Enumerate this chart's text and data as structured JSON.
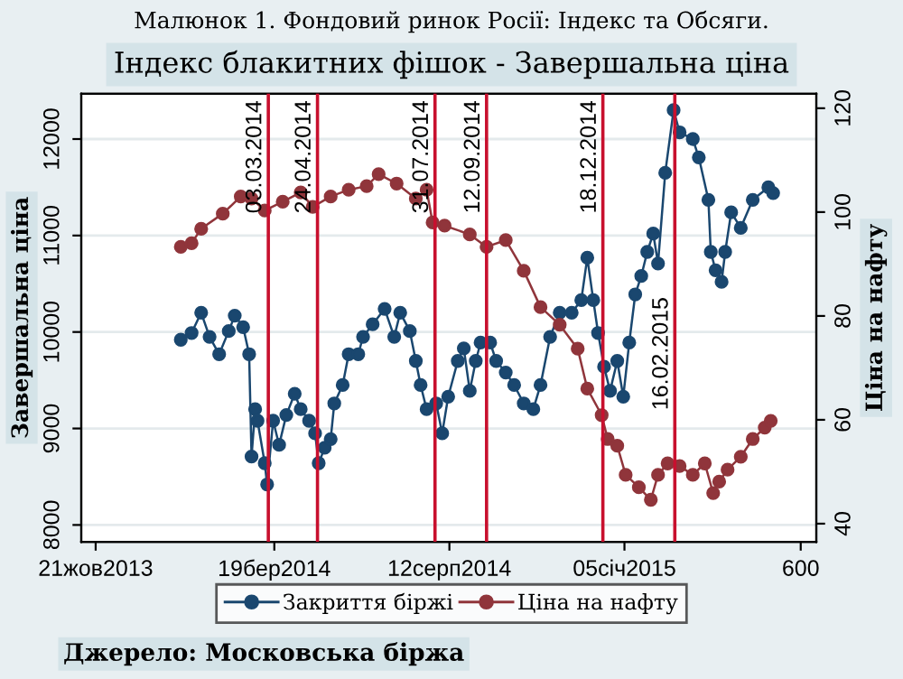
{
  "chart_data": {
    "type": "line",
    "title": "Малюнок 1. Фондовий ринок Росії: Індекс та Обсяги.",
    "subtitle": "Індекс блакитних фішок - Завершальна ціна",
    "ylabel": "Завершальна ціна",
    "y2label": "Ціна на нафту",
    "annotations": [
      "Джерело: Московська біржа"
    ],
    "series": [
      {
        "name": "Закриття біржі",
        "color": "#1a476f",
        "x": [
          "2013-12-31",
          "2014-01-09",
          "2014-01-17",
          "2014-01-24",
          "2014-02-01",
          "2014-02-09",
          "2014-02-14",
          "2014-02-21",
          "2014-02-26",
          "2014-02-28",
          "2014-03-03",
          "2014-03-05",
          "2014-03-11",
          "2014-03-13",
          "2014-03-18",
          "2014-03-23",
          "2014-03-29",
          "2014-04-05",
          "2014-04-10",
          "2014-04-17",
          "2014-04-22",
          "2014-04-25",
          "2014-04-30",
          "2014-05-05",
          "2014-05-08",
          "2014-05-15",
          "2014-05-20",
          "2014-05-28",
          "2014-06-01",
          "2014-06-09",
          "2014-06-19",
          "2014-06-27",
          "2014-07-02",
          "2014-07-10",
          "2014-07-15",
          "2014-07-19",
          "2014-07-24",
          "2014-08-01",
          "2014-08-06",
          "2014-08-11",
          "2014-08-19",
          "2014-08-24",
          "2014-08-29",
          "2014-09-03",
          "2014-09-07",
          "2014-09-15",
          "2014-09-20",
          "2014-09-28",
          "2014-10-05",
          "2014-10-13",
          "2014-10-21",
          "2014-10-27",
          "2014-11-04",
          "2014-11-12",
          "2014-11-22",
          "2014-11-30",
          "2014-12-05",
          "2014-12-10",
          "2014-12-14",
          "2014-12-19",
          "2014-12-24",
          "2014-12-30",
          "2015-01-04",
          "2015-01-09",
          "2015-01-14",
          "2015-01-19",
          "2015-01-24",
          "2015-01-29",
          "2015-02-02",
          "2015-02-08",
          "2015-02-15",
          "2015-02-20",
          "2015-03-03",
          "2015-03-08",
          "2015-03-16",
          "2015-03-18",
          "2015-03-22",
          "2015-03-27",
          "2015-03-30",
          "2015-04-04",
          "2015-04-12",
          "2015-04-22",
          "2015-05-05",
          "2015-05-09"
        ],
        "values": [
          9920,
          9990,
          10200,
          9950,
          9770,
          10010,
          10170,
          10050,
          9770,
          8710,
          9200,
          9080,
          8640,
          8420,
          9080,
          8830,
          9140,
          9360,
          9200,
          9080,
          8950,
          8640,
          8800,
          8890,
          9260,
          9450,
          9770,
          9770,
          9950,
          10080,
          10240,
          9950,
          10200,
          10010,
          9700,
          9450,
          9200,
          9260,
          8950,
          9330,
          9700,
          9830,
          9390,
          9700,
          9890,
          9890,
          9700,
          9580,
          9450,
          9260,
          9200,
          9450,
          9950,
          10200,
          10200,
          10330,
          10770,
          10330,
          9990,
          9640,
          9390,
          9700,
          9330,
          9890,
          10390,
          10580,
          10830,
          11020,
          10710,
          11650,
          12300,
          12070,
          12000,
          11810,
          11370,
          10830,
          10640,
          10520,
          10830,
          11240,
          11080,
          11370,
          11500,
          11440
        ]
      },
      {
        "name": "Ціна на нафту",
        "color": "#90353b",
        "axis": "y2",
        "x": [
          "2013-12-31",
          "2014-01-09",
          "2014-01-17",
          "2014-02-04",
          "2014-02-19",
          "2014-02-28",
          "2014-03-11",
          "2014-03-26",
          "2014-04-10",
          "2014-04-20",
          "2014-05-05",
          "2014-05-20",
          "2014-06-04",
          "2014-06-14",
          "2014-06-29",
          "2014-07-15",
          "2014-07-24",
          "2014-07-29",
          "2014-08-08",
          "2014-08-29",
          "2014-09-12",
          "2014-09-28",
          "2014-10-13",
          "2014-10-27",
          "2014-11-12",
          "2014-11-27",
          "2014-12-05",
          "2014-12-17",
          "2014-12-22",
          "2014-12-30",
          "2015-01-06",
          "2015-01-17",
          "2015-01-27",
          "2015-02-02",
          "2015-02-10",
          "2015-02-20",
          "2015-03-03",
          "2015-03-13",
          "2015-03-20",
          "2015-03-25",
          "2015-04-01",
          "2015-04-12",
          "2015-04-22",
          "2015-05-02",
          "2015-05-07"
        ],
        "values": [
          93.3,
          94,
          96.8,
          99.7,
          103,
          102.6,
          100.3,
          102,
          103.8,
          101,
          103,
          104.3,
          105,
          107.3,
          105.5,
          102.6,
          104.3,
          98,
          97.4,
          95.7,
          93.3,
          94.6,
          88.7,
          81.7,
          78.3,
          73.7,
          66,
          60.9,
          56.3,
          55,
          49.4,
          47,
          44.6,
          49.4,
          51.6,
          51.1,
          49.4,
          51.6,
          45.9,
          48.1,
          50.4,
          52.9,
          56.3,
          58.5,
          59.8
        ]
      }
    ],
    "xlim": [
      "2013-10-09",
      "2015-06-14"
    ],
    "xticks": [
      {
        "value": "2013-10-21",
        "label": "21жов2013"
      },
      {
        "value": "2014-03-19",
        "label": "19бер2014"
      },
      {
        "value": "2014-08-12",
        "label": "12серп2014"
      },
      {
        "value": "2015-01-05",
        "label": "05січ2015"
      },
      {
        "value": "2015-06-01",
        "label": "600"
      }
    ],
    "ylim": [
      7825,
      12470
    ],
    "yticks": [
      8000,
      9000,
      10000,
      11000,
      12000
    ],
    "y2lim": [
      36.5,
      122.8
    ],
    "y2ticks": [
      40,
      60,
      80,
      100,
      120
    ],
    "ref_lines": [
      {
        "axis": "x",
        "value": "2014-03-14",
        "label": "03.03.2014",
        "color": "#c8102e"
      },
      {
        "axis": "x",
        "value": "2014-04-24",
        "label": "24.04.2014",
        "color": "#c8102e"
      },
      {
        "axis": "x",
        "value": "2014-07-31",
        "label": "31.07.2014",
        "color": "#c8102e"
      },
      {
        "axis": "x",
        "value": "2014-09-12",
        "label": "12.09.2014",
        "color": "#c8102e"
      },
      {
        "axis": "x",
        "value": "2014-12-18",
        "label": "18.12.2014",
        "color": "#c8102e"
      },
      {
        "axis": "x",
        "value": "2015-02-16",
        "label": "16.02.2015",
        "color": "#c8102e"
      }
    ],
    "grid": "y",
    "legend": "bottom",
    "marker": "circle",
    "line_style": "solid"
  }
}
